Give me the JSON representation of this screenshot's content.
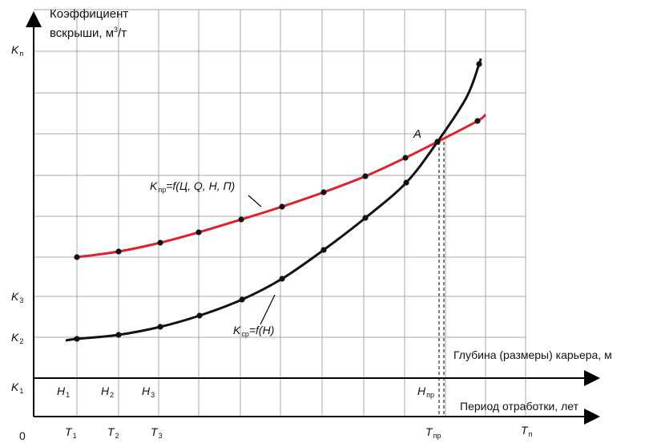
{
  "y_axis": {
    "line1": "Коэффициент",
    "line2": "вскрыши, м",
    "sup": "3",
    "suffix": "/т"
  },
  "x_axis_depth": "Глубина (размеры) карьера, м",
  "x_axis_period": "Период отработки, лет",
  "origin": "0",
  "y_ticks": [
    {
      "main": "K",
      "sub": "п"
    },
    {
      "main": "K",
      "sub": "3"
    },
    {
      "main": "K",
      "sub": "2"
    },
    {
      "main": "K",
      "sub": "1"
    }
  ],
  "h_ticks": [
    {
      "main": "H",
      "sub": "1"
    },
    {
      "main": "H",
      "sub": "2"
    },
    {
      "main": "H",
      "sub": "3"
    },
    {
      "main": "H",
      "sub": "пр"
    }
  ],
  "t_ticks": [
    {
      "main": "T",
      "sub": "1"
    },
    {
      "main": "T",
      "sub": "2"
    },
    {
      "main": "T",
      "sub": "3"
    },
    {
      "main": "T",
      "sub": "пр"
    },
    {
      "main": "T",
      "sub": "п"
    }
  ],
  "curve_red_label": {
    "main": "K",
    "sub": "пр",
    "rest": "=f(Ц, Q, H, П)"
  },
  "curve_black_label": {
    "main": "K",
    "sub": "ср",
    "rest": "=f(H)"
  },
  "intersection_label": "A",
  "colors": {
    "red_curve": "#e0202a",
    "black_curve": "#111111",
    "grid": "#a9a9a9"
  }
}
